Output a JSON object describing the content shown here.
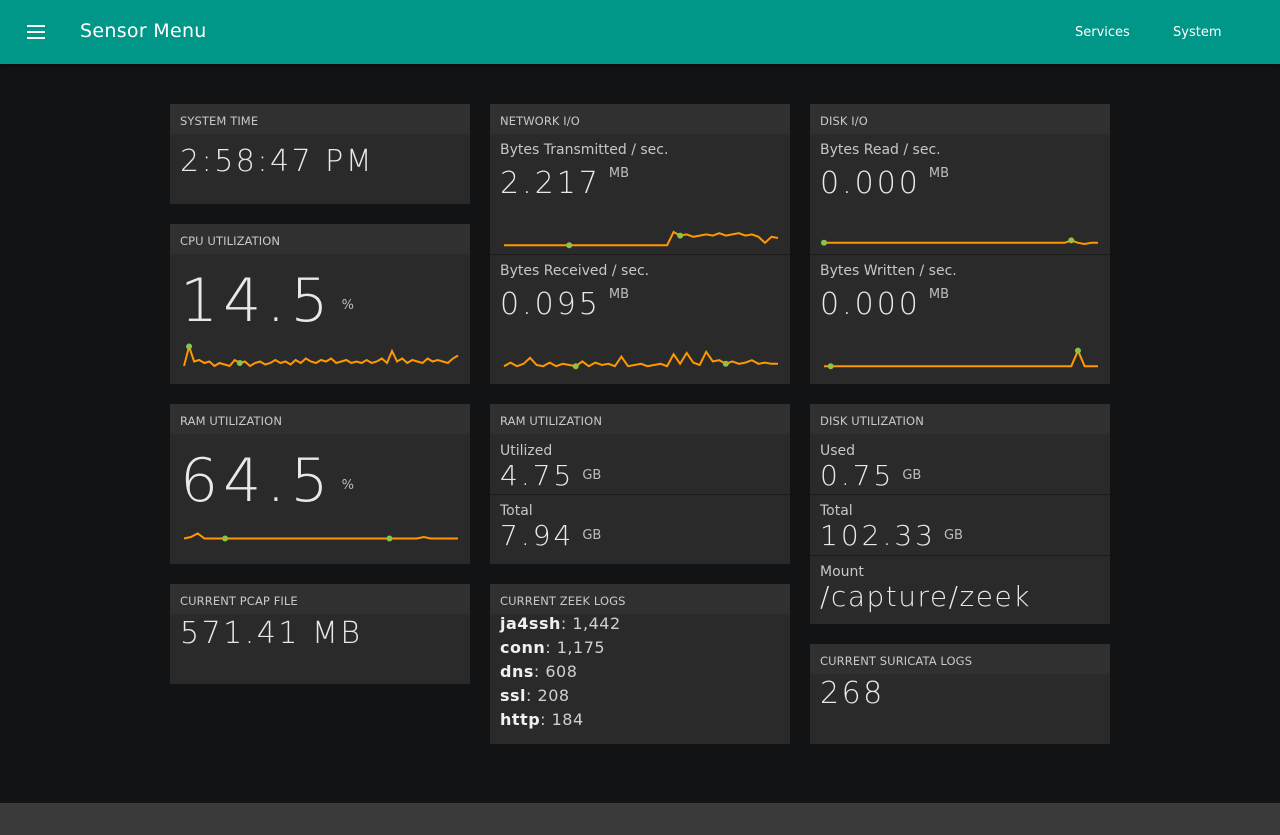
{
  "header": {
    "title": "Sensor Menu",
    "nav": [
      "Services",
      "System"
    ]
  },
  "colors": {
    "header": "#009688",
    "spark_line": "#ff9800",
    "spark_dot": "#8bc34a"
  },
  "system_time": {
    "title": "SYSTEM TIME",
    "value": "2:58:47 PM"
  },
  "cpu": {
    "title": "CPU UTILIZATION",
    "value": "14.5",
    "unit": "%",
    "series": [
      0.2,
      0.85,
      0.35,
      0.4,
      0.3,
      0.35,
      0.2,
      0.3,
      0.25,
      0.2,
      0.4,
      0.3,
      0.35,
      0.2,
      0.3,
      0.35,
      0.25,
      0.3,
      0.4,
      0.3,
      0.35,
      0.25,
      0.4,
      0.3,
      0.45,
      0.35,
      0.3,
      0.4,
      0.35,
      0.45,
      0.3,
      0.35,
      0.4,
      0.3,
      0.35,
      0.3,
      0.4,
      0.3,
      0.35,
      0.45,
      0.3,
      0.7,
      0.35,
      0.45,
      0.3,
      0.4,
      0.35,
      0.3,
      0.45,
      0.35,
      0.4,
      0.35,
      0.3,
      0.45,
      0.55
    ],
    "dots": [
      1,
      11
    ]
  },
  "ram_util": {
    "title": "RAM UTILIZATION",
    "value": "64.5",
    "unit": "%",
    "series": [
      0.45,
      0.5,
      0.62,
      0.45,
      0.45,
      0.45,
      0.45,
      0.45,
      0.45,
      0.45,
      0.45,
      0.45,
      0.45,
      0.45,
      0.45,
      0.45,
      0.45,
      0.45,
      0.45,
      0.45,
      0.45,
      0.45,
      0.45,
      0.45,
      0.45,
      0.45,
      0.45,
      0.45,
      0.45,
      0.45,
      0.45,
      0.45,
      0.45,
      0.45,
      0.45,
      0.5,
      0.45,
      0.45,
      0.45,
      0.45,
      0.45
    ],
    "dots": [
      6,
      30
    ]
  },
  "pcap": {
    "title": "CURRENT PCAP FILE",
    "value": "571.41 MB"
  },
  "network": {
    "title": "NETWORK I/O",
    "tx": {
      "label": "Bytes Transmitted / sec.",
      "value": "2.217",
      "unit": "MB",
      "series": [
        0.2,
        0.2,
        0.2,
        0.2,
        0.2,
        0.2,
        0.2,
        0.2,
        0.2,
        0.2,
        0.2,
        0.2,
        0.2,
        0.2,
        0.2,
        0.2,
        0.2,
        0.2,
        0.2,
        0.2,
        0.2,
        0.2,
        0.2,
        0.2,
        0.2,
        0.2,
        0.75,
        0.6,
        0.65,
        0.55,
        0.6,
        0.65,
        0.6,
        0.7,
        0.6,
        0.65,
        0.7,
        0.6,
        0.65,
        0.55,
        0.3,
        0.55,
        0.5
      ],
      "dots": [
        10,
        27
      ]
    },
    "rx": {
      "label": "Bytes Received / sec.",
      "value": "0.095",
      "unit": "MB",
      "series": [
        0.2,
        0.35,
        0.2,
        0.3,
        0.55,
        0.25,
        0.2,
        0.35,
        0.2,
        0.3,
        0.25,
        0.2,
        0.4,
        0.2,
        0.35,
        0.25,
        0.3,
        0.2,
        0.6,
        0.2,
        0.25,
        0.3,
        0.2,
        0.25,
        0.3,
        0.2,
        0.7,
        0.3,
        0.75,
        0.35,
        0.25,
        0.8,
        0.4,
        0.45,
        0.3,
        0.4,
        0.3,
        0.35,
        0.45,
        0.3,
        0.35,
        0.3,
        0.3
      ],
      "dots": [
        11,
        34
      ]
    }
  },
  "disk_io": {
    "title": "DISK I/O",
    "read": {
      "label": "Bytes Read / sec.",
      "value": "0.000",
      "unit": "MB",
      "series": [
        0.3,
        0.3,
        0.3,
        0.3,
        0.3,
        0.3,
        0.3,
        0.3,
        0.3,
        0.3,
        0.3,
        0.3,
        0.3,
        0.3,
        0.3,
        0.3,
        0.3,
        0.3,
        0.3,
        0.3,
        0.3,
        0.3,
        0.3,
        0.3,
        0.3,
        0.3,
        0.3,
        0.3,
        0.3,
        0.3,
        0.3,
        0.3,
        0.3,
        0.3,
        0.3,
        0.3,
        0.3,
        0.4,
        0.3,
        0.25,
        0.3,
        0.3
      ],
      "dots": [
        0,
        37
      ]
    },
    "write": {
      "label": "Bytes Written / sec.",
      "value": "0.000",
      "unit": "MB",
      "series": [
        0.2,
        0.2,
        0.2,
        0.2,
        0.2,
        0.2,
        0.2,
        0.2,
        0.2,
        0.2,
        0.2,
        0.2,
        0.2,
        0.2,
        0.2,
        0.2,
        0.2,
        0.2,
        0.2,
        0.2,
        0.2,
        0.2,
        0.2,
        0.2,
        0.2,
        0.2,
        0.2,
        0.2,
        0.2,
        0.2,
        0.2,
        0.2,
        0.2,
        0.2,
        0.2,
        0.2,
        0.2,
        0.2,
        0.85,
        0.2,
        0.2,
        0.2
      ],
      "dots": [
        1,
        38
      ]
    }
  },
  "ram_detail": {
    "title": "RAM UTILIZATION",
    "utilized": {
      "label": "Utilized",
      "value": "4.75",
      "unit": "GB"
    },
    "total": {
      "label": "Total",
      "value": "7.94",
      "unit": "GB"
    }
  },
  "disk_util": {
    "title": "DISK UTILIZATION",
    "used": {
      "label": "Used",
      "value": "0.75",
      "unit": "GB"
    },
    "total": {
      "label": "Total",
      "value": "102.33",
      "unit": "GB"
    },
    "mount": {
      "label": "Mount",
      "value": "/capture/zeek"
    }
  },
  "zeek": {
    "title": "CURRENT ZEEK LOGS",
    "logs": [
      {
        "name": "ja4ssh",
        "count": ": 1,442"
      },
      {
        "name": "conn",
        "count": ": 1,175"
      },
      {
        "name": "dns",
        "count": ": 608"
      },
      {
        "name": "ssl",
        "count": ": 208"
      },
      {
        "name": "http",
        "count": ": 184"
      }
    ]
  },
  "suricata": {
    "title": "CURRENT SURICATA LOGS",
    "value": "268"
  }
}
